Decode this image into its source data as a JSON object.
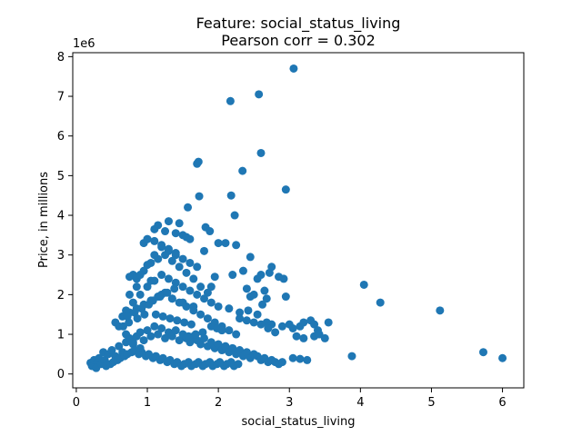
{
  "chart_data": {
    "type": "scatter",
    "title": "Feature: social_status_living",
    "subtitle": "Pearson corr = 0.302",
    "xlabel": "social_status_living",
    "ylabel": "Price, in millions",
    "y_offset_label": "1e6",
    "xlim": [
      -0.05,
      6.3
    ],
    "ylim": [
      -0.35,
      8.1
    ],
    "x_ticks": [
      0,
      1,
      2,
      3,
      4,
      5,
      6
    ],
    "y_ticks": [
      0,
      1,
      2,
      3,
      4,
      5,
      6,
      7,
      8
    ],
    "y_units": "1e6",
    "grid": false,
    "marker_color": "#1f77b4",
    "series": [
      {
        "x": [
          3.06,
          2.57,
          2.17,
          2.6,
          2.34,
          1.72,
          1.7,
          2.95,
          1.73,
          2.18,
          1.57,
          2.23,
          1.3,
          1.15,
          1.82,
          1.88,
          1.0,
          0.95,
          1.45,
          2.1,
          2.25,
          2.45,
          2.75,
          2.6,
          2.85,
          2.92,
          2.72,
          2.68,
          2.2,
          1.95,
          0.8,
          0.75,
          0.85,
          1.05,
          1.9,
          2.62,
          2.95,
          2.42,
          2.55,
          2.3,
          2.15,
          2.68,
          2.75,
          2.9,
          3.0,
          3.05,
          3.15,
          3.2,
          3.3,
          3.35,
          3.4,
          3.55,
          3.1,
          3.2,
          3.35,
          3.5,
          3.42,
          3.05,
          3.15,
          3.25,
          3.88,
          4.05,
          4.28,
          5.12,
          5.73,
          6.0,
          0.2,
          0.22,
          0.25,
          0.3,
          0.28,
          0.32,
          0.35,
          0.38,
          0.4,
          0.45,
          0.5,
          0.55,
          0.6,
          0.65,
          0.7,
          0.75,
          0.8,
          0.85,
          0.9,
          0.95,
          1.0,
          1.05,
          1.1,
          1.15,
          1.2,
          1.25,
          1.3,
          1.35,
          1.4,
          1.45,
          1.5,
          1.55,
          1.6,
          1.65,
          1.7,
          1.75,
          1.8,
          1.85,
          1.9,
          1.95,
          2.0,
          2.05,
          2.1,
          2.15,
          2.2,
          2.25,
          2.3,
          2.35,
          2.4,
          2.45,
          2.5,
          2.55,
          2.6,
          2.65,
          2.7,
          2.75,
          2.8,
          2.85,
          2.9,
          0.42,
          0.48,
          0.52,
          0.58,
          0.62,
          0.68,
          0.72,
          0.78,
          0.82,
          0.88,
          0.92,
          0.98,
          1.02,
          1.08,
          1.12,
          1.18,
          1.22,
          1.28,
          1.32,
          1.38,
          1.42,
          1.48,
          1.52,
          1.58,
          1.62,
          1.68,
          1.72,
          1.78,
          1.82,
          1.88,
          1.92,
          1.98,
          2.02,
          2.08,
          2.12,
          2.18,
          2.22,
          2.28,
          0.55,
          0.65,
          0.75,
          0.85,
          0.95,
          1.05,
          1.15,
          1.25,
          1.35,
          1.45,
          1.55,
          1.65,
          1.75,
          1.85,
          1.95,
          2.05,
          2.15,
          2.25,
          0.7,
          0.8,
          0.9,
          1.0,
          1.1,
          1.2,
          1.3,
          1.4,
          1.5,
          1.6,
          1.7,
          1.8,
          1.9,
          2.0,
          0.75,
          0.85,
          0.95,
          1.05,
          1.15,
          1.25,
          1.35,
          1.45,
          1.55,
          1.65,
          1.75,
          1.85,
          0.9,
          1.0,
          1.1,
          1.2,
          1.3,
          1.4,
          1.5,
          1.6,
          1.7,
          1.0,
          1.1,
          1.2,
          1.3,
          1.4,
          1.5,
          1.6,
          1.1,
          1.25,
          1.4,
          1.55,
          1.2,
          1.35,
          1.5,
          1.65,
          1.8,
          2.0,
          0.6,
          0.7,
          0.8,
          0.9,
          2.3,
          2.4,
          2.5,
          2.6,
          2.7,
          2.8,
          2.45,
          2.55,
          2.65,
          2.35,
          2.5,
          2.4,
          1.12,
          1.22,
          1.32,
          1.42,
          1.52,
          1.62,
          1.9,
          1.98,
          2.05,
          1.78,
          1.68,
          1.58,
          0.72,
          0.82,
          0.92,
          1.02,
          1.08,
          1.18,
          1.28,
          1.38,
          0.66,
          0.74,
          0.86,
          0.96
        ],
        "y": [
          7.7,
          7.05,
          6.88,
          5.57,
          5.12,
          5.35,
          5.3,
          4.65,
          4.48,
          4.5,
          4.2,
          4.0,
          3.85,
          3.75,
          3.7,
          3.6,
          3.4,
          3.3,
          3.8,
          3.3,
          3.25,
          2.95,
          2.7,
          2.5,
          2.45,
          2.4,
          2.55,
          1.9,
          2.5,
          2.45,
          2.5,
          2.45,
          2.4,
          2.35,
          2.2,
          1.75,
          1.95,
          1.6,
          1.5,
          1.55,
          1.65,
          1.3,
          1.25,
          1.2,
          1.25,
          1.15,
          1.2,
          1.3,
          1.35,
          1.25,
          1.1,
          1.3,
          0.95,
          0.9,
          0.95,
          0.9,
          1.0,
          0.4,
          0.38,
          0.35,
          0.45,
          2.25,
          1.8,
          1.6,
          0.55,
          0.4,
          0.28,
          0.2,
          0.35,
          0.3,
          0.15,
          0.4,
          0.25,
          0.55,
          0.35,
          0.5,
          0.6,
          0.45,
          0.7,
          0.55,
          0.8,
          0.9,
          0.75,
          0.95,
          1.05,
          0.85,
          1.1,
          0.95,
          1.2,
          1.0,
          1.15,
          0.9,
          1.05,
          0.95,
          1.1,
          0.85,
          1.0,
          0.9,
          0.8,
          0.95,
          0.85,
          0.75,
          0.9,
          0.7,
          0.8,
          0.65,
          0.75,
          0.6,
          0.7,
          0.55,
          0.65,
          0.5,
          0.6,
          0.45,
          0.55,
          0.4,
          0.5,
          0.45,
          0.35,
          0.4,
          0.3,
          0.35,
          0.3,
          0.25,
          0.3,
          0.2,
          0.25,
          0.3,
          0.35,
          0.4,
          0.45,
          0.5,
          0.55,
          0.6,
          0.5,
          0.55,
          0.45,
          0.5,
          0.4,
          0.45,
          0.35,
          0.4,
          0.3,
          0.35,
          0.25,
          0.3,
          0.2,
          0.25,
          0.3,
          0.2,
          0.25,
          0.3,
          0.2,
          0.25,
          0.3,
          0.2,
          0.25,
          0.3,
          0.2,
          0.25,
          0.3,
          0.2,
          0.25,
          1.3,
          1.45,
          1.55,
          1.65,
          1.75,
          1.85,
          1.95,
          2.05,
          1.9,
          1.8,
          1.7,
          1.6,
          1.5,
          1.4,
          1.3,
          1.2,
          1.1,
          1.0,
          1.6,
          1.8,
          2.0,
          2.2,
          2.35,
          2.5,
          2.4,
          2.3,
          2.2,
          2.1,
          2.0,
          1.9,
          1.8,
          1.7,
          2.0,
          2.2,
          2.6,
          2.8,
          2.9,
          3.0,
          2.85,
          2.7,
          2.55,
          2.4,
          2.2,
          2.05,
          2.5,
          2.75,
          3.0,
          3.2,
          3.1,
          3.0,
          2.9,
          2.8,
          2.7,
          3.4,
          3.35,
          3.25,
          3.15,
          3.05,
          3.5,
          3.4,
          3.65,
          3.6,
          3.55,
          3.45,
          2.0,
          1.9,
          1.8,
          1.7,
          3.1,
          3.3,
          1.2,
          1.0,
          0.8,
          0.65,
          1.4,
          1.35,
          1.3,
          1.25,
          1.15,
          1.05,
          1.95,
          2.4,
          2.1,
          2.6,
          2.0,
          2.15,
          1.5,
          1.45,
          1.4,
          1.35,
          1.3,
          1.25,
          1.2,
          1.15,
          1.1,
          1.05,
          1.0,
          0.95,
          1.45,
          1.55,
          1.65,
          1.75,
          1.85,
          1.95,
          2.05,
          2.15,
          1.2,
          1.3,
          1.4,
          1.5
        ]
      }
    ]
  }
}
